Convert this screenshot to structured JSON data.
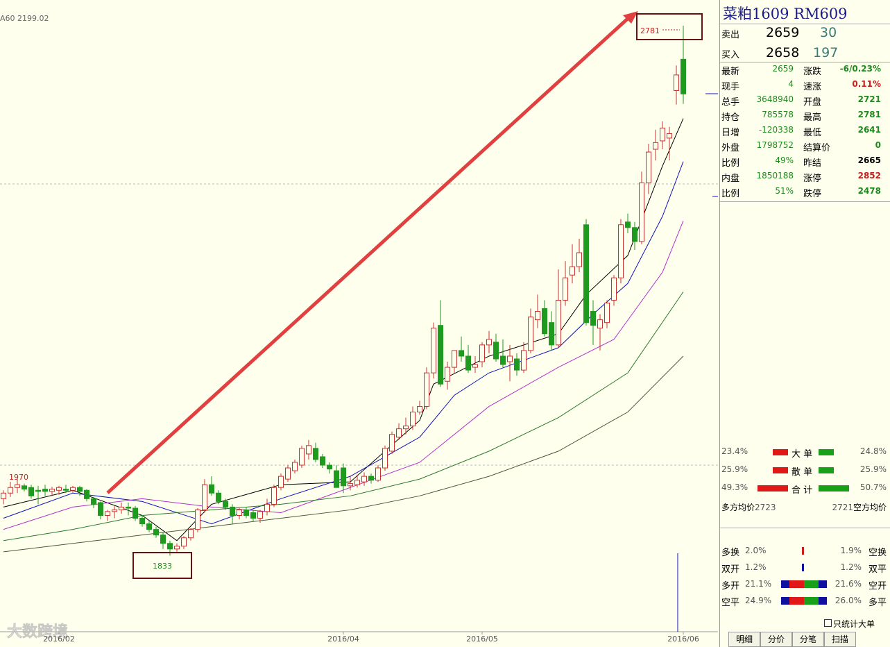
{
  "chart_data": {
    "type": "candlestick",
    "ma_label": "A60 2199.02",
    "open": [
      1935,
      1945,
      1955,
      1958,
      1955,
      1950,
      1952,
      1948,
      1950,
      1952,
      1950,
      1955,
      1950,
      1935,
      1928,
      1905,
      1912,
      1915,
      1920,
      1918,
      1900,
      1890,
      1880,
      1870,
      1855,
      1845,
      1850,
      1865,
      1880,
      1915,
      1960,
      1945,
      1930,
      1920,
      1905,
      1915,
      1910,
      1900,
      1912,
      1925,
      1955,
      1970,
      1985,
      1995,
      2015,
      2025,
      2010,
      1995,
      1985,
      1990,
      1958,
      1960,
      1965,
      1975,
      1968,
      1990,
      2020,
      2045,
      2060,
      2065,
      2090,
      2100,
      2160,
      2245,
      2145,
      2170,
      2200,
      2190,
      2170,
      2180,
      2210,
      2215,
      2190,
      2180,
      2185,
      2165,
      2200,
      2255,
      2275,
      2250,
      2210,
      2290,
      2335,
      2350,
      2425,
      2270,
      2240,
      2250,
      2290,
      2330,
      2430,
      2420,
      2395,
      2500,
      2560,
      2575,
      2580,
      2665,
      2721
    ],
    "high": [
      1950,
      1965,
      1970,
      1962,
      1960,
      1958,
      1960,
      1956,
      1958,
      1960,
      1958,
      1958,
      1952,
      1938,
      1930,
      1915,
      1922,
      1928,
      1928,
      1922,
      1905,
      1895,
      1885,
      1875,
      1860,
      1855,
      1868,
      1882,
      1918,
      1970,
      1975,
      1950,
      1935,
      1925,
      1918,
      1920,
      1915,
      1915,
      1935,
      1960,
      1980,
      1995,
      2005,
      2030,
      2040,
      2035,
      2015,
      2000,
      1995,
      1998,
      1975,
      1978,
      1982,
      1980,
      1995,
      2030,
      2055,
      2070,
      2080,
      2100,
      2110,
      2170,
      2250,
      2290,
      2180,
      2200,
      2225,
      2210,
      2190,
      2215,
      2235,
      2230,
      2220,
      2210,
      2195,
      2215,
      2275,
      2300,
      2290,
      2270,
      2345,
      2360,
      2390,
      2400,
      2435,
      2290,
      2265,
      2290,
      2335,
      2435,
      2445,
      2430,
      2520,
      2570,
      2595,
      2610,
      2600,
      2710,
      2781
    ],
    "low": [
      1925,
      1938,
      1945,
      1948,
      1935,
      1925,
      1940,
      1940,
      1942,
      1945,
      1945,
      1940,
      1930,
      1918,
      1898,
      1895,
      1900,
      1908,
      1905,
      1895,
      1885,
      1875,
      1865,
      1845,
      1833,
      1840,
      1845,
      1860,
      1875,
      1910,
      1940,
      1925,
      1915,
      1890,
      1898,
      1900,
      1895,
      1892,
      1905,
      1920,
      1950,
      1965,
      1980,
      1990,
      2005,
      2000,
      1990,
      1980,
      1955,
      1945,
      1950,
      1955,
      1958,
      1962,
      1965,
      1985,
      2015,
      2040,
      2050,
      2058,
      2085,
      2095,
      2150,
      2135,
      2130,
      2160,
      2180,
      2160,
      2160,
      2170,
      2195,
      2180,
      2170,
      2145,
      2155,
      2160,
      2195,
      2240,
      2225,
      2200,
      2205,
      2280,
      2320,
      2340,
      2245,
      2210,
      2200,
      2240,
      2280,
      2320,
      2410,
      2380,
      2390,
      2480,
      2540,
      2560,
      2540,
      2640,
      2641
    ],
    "close": [
      1945,
      1955,
      1960,
      1952,
      1940,
      1948,
      1948,
      1952,
      1955,
      1950,
      1955,
      1948,
      1935,
      1925,
      1905,
      1912,
      1915,
      1920,
      1918,
      1900,
      1890,
      1880,
      1870,
      1855,
      1845,
      1850,
      1865,
      1880,
      1915,
      1960,
      1945,
      1930,
      1920,
      1905,
      1915,
      1905,
      1900,
      1912,
      1925,
      1955,
      1975,
      1990,
      2000,
      2025,
      2030,
      2005,
      1995,
      1988,
      1955,
      1958,
      1962,
      1968,
      1975,
      1968,
      1990,
      2025,
      2050,
      2060,
      2065,
      2090,
      2100,
      2160,
      2240,
      2140,
      2170,
      2200,
      2190,
      2165,
      2175,
      2210,
      2220,
      2185,
      2175,
      2190,
      2165,
      2200,
      2260,
      2270,
      2230,
      2210,
      2290,
      2330,
      2350,
      2375,
      2250,
      2245,
      2255,
      2285,
      2330,
      2425,
      2420,
      2395,
      2500,
      2555,
      2572,
      2598,
      2588,
      2693,
      2659
    ],
    "up_color": "#c83232",
    "down_color": "#1e9a1e",
    "moving_averages": [
      {
        "color": "#000000",
        "x": [
          0,
          10,
          20,
          25,
          30,
          40,
          50,
          60,
          62,
          70,
          80,
          84,
          90,
          95,
          98
        ],
        "values": [
          1920,
          1950,
          1905,
          1860,
          1925,
          1960,
          1965,
          2075,
          2140,
          2190,
          2230,
          2300,
          2370,
          2530,
          2615
        ]
      },
      {
        "color": "#1010c0",
        "x": [
          0,
          10,
          20,
          30,
          40,
          50,
          60,
          65,
          70,
          80,
          85,
          90,
          95,
          98
        ],
        "values": [
          1900,
          1945,
          1930,
          1890,
          1935,
          1975,
          2045,
          2120,
          2160,
          2205,
          2265,
          2320,
          2440,
          2538
        ]
      },
      {
        "color": "#b030d0",
        "x": [
          0,
          10,
          20,
          30,
          40,
          50,
          60,
          70,
          80,
          88,
          95,
          98
        ],
        "values": [
          1880,
          1920,
          1935,
          1920,
          1910,
          1955,
          2000,
          2100,
          2170,
          2220,
          2340,
          2432
        ]
      },
      {
        "color": "#2a7a2a",
        "x": [
          0,
          10,
          20,
          30,
          40,
          50,
          60,
          70,
          80,
          90,
          98
        ],
        "values": [
          1860,
          1880,
          1905,
          1915,
          1925,
          1940,
          1970,
          2020,
          2080,
          2160,
          2305
        ]
      },
      {
        "color": "#4a5a3a",
        "x": [
          0,
          20,
          40,
          50,
          60,
          70,
          80,
          90,
          98
        ],
        "values": [
          1840,
          1870,
          1900,
          1915,
          1940,
          1975,
          2020,
          2090,
          2190
        ]
      }
    ],
    "xlim": [
      -0.5,
      103
    ],
    "ylim": [
      1697,
      2827
    ],
    "xticks": [
      {
        "value": 8,
        "label": "2016/02"
      },
      {
        "value": 49,
        "label": "2016/04"
      },
      {
        "value": 69,
        "label": "2016/05"
      },
      {
        "value": 98,
        "label": "2016/06"
      }
    ],
    "annotations": {
      "high": "2781",
      "low": "1833",
      "prior_high": "1970"
    }
  },
  "header": {
    "name": "菜粕1609",
    "code": "RM609"
  },
  "quote": {
    "sell": {
      "label": "卖出",
      "price": "2659",
      "volume": "30"
    },
    "buy": {
      "label": "买入",
      "price": "2658",
      "volume": "197"
    }
  },
  "stats": [
    {
      "label": "最新",
      "value": "2659",
      "label2": "涨跌",
      "value2": "-6/0.23%",
      "color2": "#1e8a1e"
    },
    {
      "label": "现手",
      "value": "4",
      "label2": "速涨",
      "value2": "0.11%",
      "color2": "#c81e1e"
    },
    {
      "label": "总手",
      "value": "3648940",
      "label2": "开盘",
      "value2": "2721",
      "color2": "#1e8a1e"
    },
    {
      "label": "持仓",
      "value": "785578",
      "label2": "最高",
      "value2": "2781",
      "color2": "#1e8a1e"
    },
    {
      "label": "日增",
      "value": "-120338",
      "label2": "最低",
      "value2": "2641",
      "color2": "#1e8a1e"
    },
    {
      "label": "外盘",
      "value": "1798752",
      "label2": "结算价",
      "value2": "0",
      "color2": "#1e8a1e"
    },
    {
      "label": "比例",
      "value": "49%",
      "label2": "昨结",
      "value2": "2665",
      "color2": "#000000"
    },
    {
      "label": "内盘",
      "value": "1850188",
      "label2": "涨停",
      "value2": "2852",
      "color2": "#c81e1e"
    },
    {
      "label": "比例",
      "value": "51%",
      "label2": "跌停",
      "value2": "2478",
      "color2": "#1e8a1e"
    }
  ],
  "flow": [
    {
      "left": "23.4%",
      "label": "大 单",
      "right": "24.8%"
    },
    {
      "left": "25.9%",
      "label": "散 单",
      "right": "25.9%"
    },
    {
      "left": "49.3%",
      "label": "合 计",
      "right": "50.7%"
    }
  ],
  "average": {
    "long_label": "多方均价",
    "long_value": "2723",
    "short_value": "2721",
    "short_label": "空方均价"
  },
  "positions": [
    {
      "left_label": "多换",
      "left": "2.0%",
      "right": "1.9%",
      "right_label": "空换"
    },
    {
      "left_label": "双开",
      "left": "1.2%",
      "right": "1.2%",
      "right_label": "双平"
    },
    {
      "left_label": "多开",
      "left": "21.1%",
      "right": "21.6%",
      "right_label": "空开"
    },
    {
      "left_label": "空平",
      "left": "24.9%",
      "right": "26.0%",
      "right_label": "多平"
    }
  ],
  "checkbox": "只统计大单",
  "tabs": [
    "明细",
    "分价",
    "分笔",
    "扫描"
  ],
  "watermark": "大数跨境"
}
